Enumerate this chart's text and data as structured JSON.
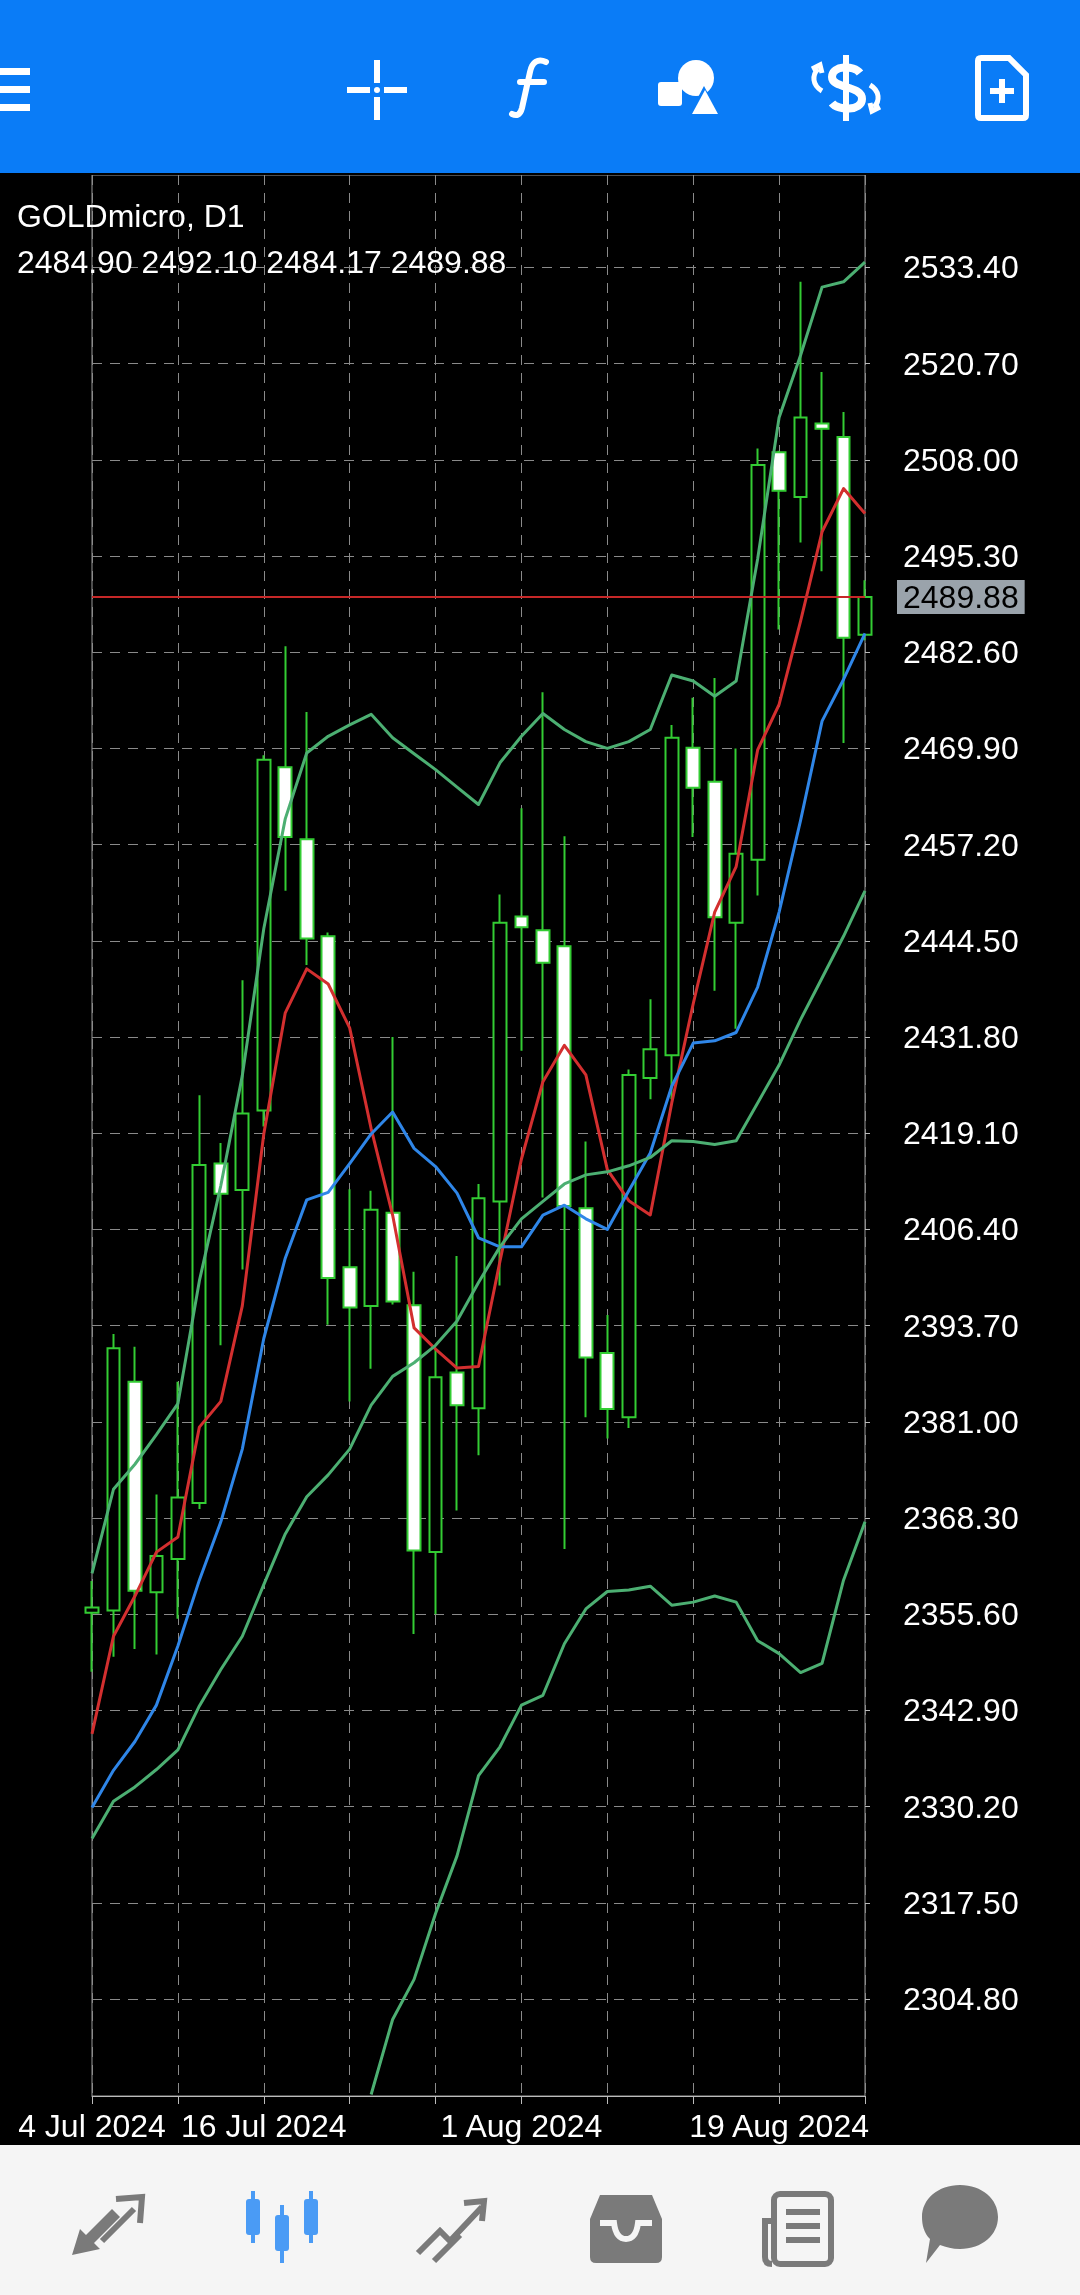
{
  "chart_data": {
    "type": "candlestick",
    "title": "GOLDmicro, D1",
    "subtitle": "2484.90 2492.10 2484.17 2489.88",
    "categories": [
      "4 Jul 2024",
      null,
      null,
      null,
      null,
      null,
      null,
      null,
      "16 Jul 2024",
      null,
      null,
      null,
      null,
      null,
      null,
      null,
      null,
      null,
      null,
      null,
      "1 Aug 2024",
      null,
      null,
      null,
      null,
      null,
      null,
      null,
      null,
      null,
      null,
      null,
      "19 Aug 2024",
      null,
      null,
      null,
      null
    ],
    "ohlc": [
      [
        2355.8,
        2360.0,
        2348.0,
        2356.5
      ],
      [
        2356.1,
        2392.6,
        2350.0,
        2390.7
      ],
      [
        2386.3,
        2390.9,
        2351.0,
        2358.7
      ],
      [
        2358.5,
        2371.4,
        2350.3,
        2363.3
      ],
      [
        2362.9,
        2386.3,
        2355.0,
        2371.0
      ],
      [
        2370.3,
        2424.1,
        2369.5,
        2414.9
      ],
      [
        2415.1,
        2417.8,
        2391.1,
        2411.1
      ],
      [
        2411.6,
        2439.3,
        2401.1,
        2421.7
      ],
      [
        2422.1,
        2469.0,
        2420.0,
        2468.4
      ],
      [
        2467.4,
        2483.4,
        2451.1,
        2458.2
      ],
      [
        2457.9,
        2474.7,
        2441.3,
        2444.8
      ],
      [
        2445.1,
        2445.6,
        2393.8,
        2400.0
      ],
      [
        2401.4,
        2411.7,
        2383.7,
        2396.1
      ],
      [
        2396.3,
        2411.5,
        2388.0,
        2409.0
      ],
      [
        2408.6,
        2431.8,
        2396.5,
        2396.9
      ],
      [
        2396.4,
        2400.8,
        2353.0,
        2364.0
      ],
      [
        2363.8,
        2390.6,
        2355.6,
        2386.9
      ],
      [
        2387.5,
        2402.9,
        2369.3,
        2383.2
      ],
      [
        2382.8,
        2412.4,
        2376.6,
        2410.5
      ],
      [
        2410.1,
        2450.6,
        2399.0,
        2446.9
      ],
      [
        2447.7,
        2462.0,
        2430.0,
        2446.3
      ],
      [
        2445.9,
        2477.3,
        2410.6,
        2441.6
      ],
      [
        2443.8,
        2458.3,
        2364.2,
        2409.5
      ],
      [
        2409.2,
        2418.0,
        2381.6,
        2389.5
      ],
      [
        2390.1,
        2395.1,
        2378.8,
        2382.7
      ],
      [
        2381.6,
        2427.5,
        2380.2,
        2426.8
      ],
      [
        2426.4,
        2436.8,
        2423.6,
        2430.2
      ],
      [
        2429.4,
        2473.0,
        2423.6,
        2471.3
      ],
      [
        2470.0,
        2476.6,
        2458.2,
        2464.7
      ],
      [
        2465.5,
        2479.2,
        2437.9,
        2447.6
      ],
      [
        2446.9,
        2469.9,
        2432.9,
        2456.0
      ],
      [
        2455.2,
        2509.5,
        2450.5,
        2507.3
      ],
      [
        2509.0,
        2509.2,
        2485.6,
        2503.9
      ],
      [
        2503.1,
        2531.5,
        2497.1,
        2513.6
      ],
      [
        2512.8,
        2519.6,
        2493.3,
        2512.1
      ],
      [
        2511.0,
        2514.3,
        2470.6,
        2484.5
      ],
      [
        2484.9,
        2492.1,
        2484.17,
        2489.88
      ]
    ],
    "color": "#33cc33",
    "colors": [
      "#000000",
      "#000000",
      "#ffffff",
      "#000000",
      "#000000",
      "#000000",
      "#ffffff",
      "#000000",
      "#000000",
      "#ffffff",
      "#ffffff",
      "#ffffff",
      "#ffffff",
      "#000000",
      "#ffffff",
      "#ffffff",
      "#000000",
      "#ffffff",
      "#000000",
      "#000000",
      "#ffffff",
      "#ffffff",
      "#ffffff",
      "#ffffff",
      "#ffffff",
      "#000000",
      "#000000",
      "#000000",
      "#ffffff",
      "#ffffff",
      "#000000",
      "#000000",
      "#ffffff",
      "#000000",
      "#ffffff",
      "#ffffff",
      "#000000"
    ],
    "series": [
      {
        "type": "line",
        "color": "#d32f2f",
        "values": [
          2339.8,
          2352.7,
          2358.0,
          2363.8,
          2365.8,
          2380.3,
          2383.7,
          2396.3,
          2419.0,
          2435.0,
          2440.8,
          2438.8,
          2433.0,
          2419.7,
          2408.3,
          2393.4,
          2390.6,
          2388.1,
          2388.3,
          2402.2,
          2415.7,
          2425.9,
          2430.7,
          2426.8,
          2414.3,
          2410.2,
          2408.3,
          2423.1,
          2436.2,
          2448.3,
          2454.3,
          2469.7,
          2475.7,
          2486.7,
          2498.5,
          2504.2,
          2500.9
        ]
      },
      {
        "type": "line",
        "color": "#2f86e8",
        "values": [
          2330.1,
          2335.0,
          2338.8,
          2343.6,
          2351.4,
          2360.1,
          2367.8,
          2377.4,
          2392.0,
          2402.6,
          2410.3,
          2411.3,
          2415.1,
          2419.0,
          2421.9,
          2417.1,
          2414.7,
          2411.2,
          2405.3,
          2404.1,
          2404.1,
          2408.3,
          2409.6,
          2407.8,
          2406.4,
          2411.5,
          2416.5,
          2425.3,
          2431.0,
          2431.3,
          2432.4,
          2438.4,
          2448.3,
          2460.4,
          2473.5,
          2479.0,
          2485.1
        ]
      },
      {
        "type": "line",
        "color": "#4caf72",
        "values": [
          2361.0,
          2372.1,
          2375.4,
          2379.3,
          2383.4,
          2399.6,
          2412.2,
          2426.7,
          2446.1,
          2460.6,
          2469.3,
          2471.5,
          2473.0,
          2474.4,
          2471.3,
          2469.2,
          2467.1,
          2464.8,
          2462.5,
          2468.0,
          2471.5,
          2474.5,
          2472.4,
          2470.8,
          2469.9,
          2470.8,
          2472.4,
          2479.6,
          2478.8,
          2476.8,
          2478.8,
          2494.9,
          2513.6,
          2521.8,
          2530.8,
          2531.5,
          2534.1
        ]
      },
      {
        "type": "line",
        "color": "#4caf72",
        "values": [
          2326.0,
          2330.9,
          2332.8,
          2335.1,
          2337.7,
          2343.5,
          2348.3,
          2352.7,
          2359.5,
          2366.2,
          2371.1,
          2374.0,
          2377.4,
          2383.2,
          2387.0,
          2388.8,
          2391.1,
          2394.3,
          2399.4,
          2404.1,
          2407.8,
          2410.1,
          2412.4,
          2413.6,
          2414.0,
          2414.8,
          2415.9,
          2418.1,
          2418.0,
          2417.6,
          2418.1,
          2423.1,
          2428.1,
          2434.1,
          2439.6,
          2445.1,
          2451.1
        ]
      },
      {
        "type": "line",
        "color": "#4caf72",
        "values": [
          null,
          null,
          null,
          null,
          null,
          null,
          null,
          null,
          null,
          null,
          null,
          null,
          null,
          2292.2,
          2302.1,
          2307.4,
          2316.1,
          2323.7,
          2334.3,
          2338.1,
          2343.6,
          2344.9,
          2351.7,
          2356.3,
          2358.6,
          2358.8,
          2359.3,
          2356.8,
          2357.2,
          2358.0,
          2357.2,
          2352.1,
          2350.4,
          2347.9,
          2349.1,
          2360.1,
          2367.8
        ]
      }
    ],
    "ylim": [
      2292.0,
      2545.6
    ],
    "yticks": [
      {
        "value": 2304.8,
        "label": "2304.80"
      },
      {
        "value": 2317.5,
        "label": "2317.50"
      },
      {
        "value": 2330.2,
        "label": "2330.20"
      },
      {
        "value": 2342.9,
        "label": "2342.90"
      },
      {
        "value": 2355.6,
        "label": "2355.60"
      },
      {
        "value": 2368.3,
        "label": "2368.30"
      },
      {
        "value": 2381.0,
        "label": "2381.00"
      },
      {
        "value": 2393.7,
        "label": "2393.70"
      },
      {
        "value": 2406.4,
        "label": "2406.40"
      },
      {
        "value": 2419.1,
        "label": "2419.10"
      },
      {
        "value": 2431.8,
        "label": "2431.80"
      },
      {
        "value": 2444.5,
        "label": "2444.50"
      },
      {
        "value": 2457.2,
        "label": "2457.20"
      },
      {
        "value": 2469.9,
        "label": "2469.90"
      },
      {
        "value": 2482.6,
        "label": "2482.60"
      },
      {
        "value": 2495.3,
        "label": "2495.30"
      },
      {
        "value": 2508.0,
        "label": "2508.00"
      },
      {
        "value": 2520.7,
        "label": "2520.70"
      },
      {
        "value": 2533.4,
        "label": "2533.40"
      }
    ],
    "grid": true,
    "marker": "none",
    "ref_lines": [
      {
        "axis": "y",
        "value": 2489.88,
        "label": "2489.88",
        "color": "#c62828"
      }
    ]
  }
}
